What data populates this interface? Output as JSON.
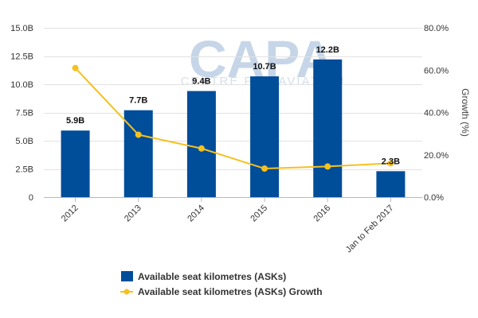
{
  "chart_data": {
    "type": "bar",
    "categories": [
      "2012",
      "2013",
      "2014",
      "2015",
      "2016",
      "Jan to Feb 2017"
    ],
    "series": [
      {
        "name": "Available seat kilometres (ASKs)",
        "type": "bar",
        "axis": "left",
        "values": [
          5.9,
          7.7,
          9.4,
          10.7,
          12.2,
          2.3
        ],
        "value_labels": [
          "5.9B",
          "7.7B",
          "9.4B",
          "10.7B",
          "12.2B",
          "2.3B"
        ],
        "color": "#004d99"
      },
      {
        "name": "Available seat kilometres (ASKs) Growth",
        "type": "line",
        "axis": "right",
        "values": [
          61,
          29.5,
          23,
          13.5,
          14.5,
          16
        ],
        "color": "#f5c11f"
      }
    ],
    "y_left": {
      "label": "",
      "ylim": [
        0,
        15
      ],
      "ticks": [
        0,
        2.5,
        5,
        7.5,
        10,
        12.5,
        15
      ],
      "tick_labels": [
        "0",
        "2.5B",
        "5.0B",
        "7.5B",
        "10.0B",
        "12.5B",
        "15.0B"
      ]
    },
    "y_right": {
      "label": "Growth (%)",
      "ylim": [
        0,
        80
      ],
      "ticks": [
        0,
        20,
        40,
        60,
        80
      ],
      "tick_labels": [
        "0.0%",
        "20.0%",
        "40.0%",
        "60.0%",
        "80.0%"
      ]
    },
    "grid": true,
    "legend_position": "bottom"
  },
  "watermark": {
    "brand": "CAPA",
    "tagline": "CENTRE FOR AVIATION"
  }
}
